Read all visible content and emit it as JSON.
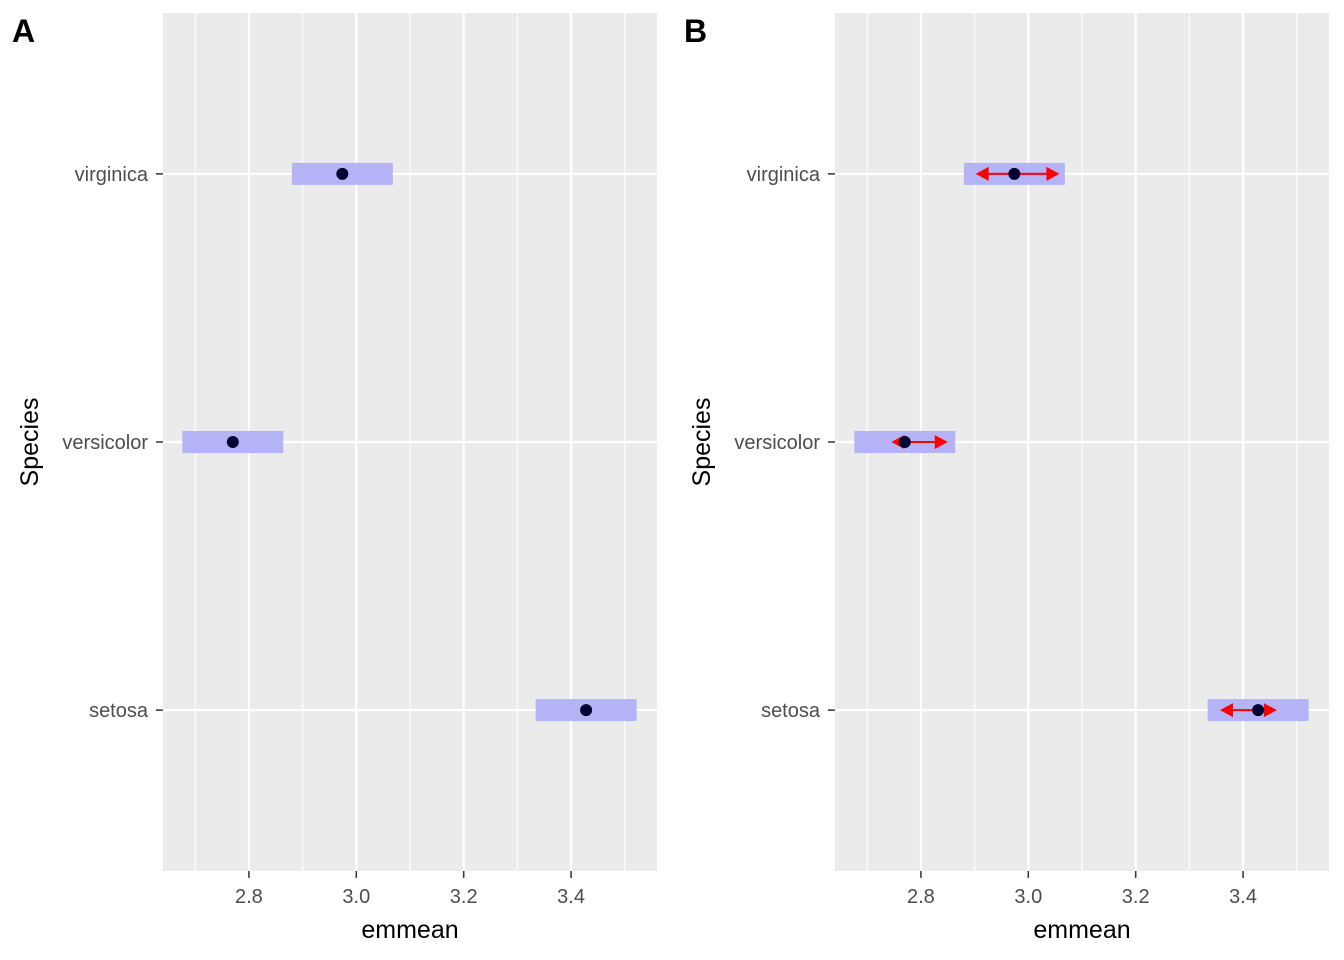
{
  "chart_data": [
    {
      "type": "scatter",
      "panel_label": "A",
      "title": "",
      "xlabel": "emmean",
      "ylabel": "Species",
      "xlim": [
        2.64,
        3.56
      ],
      "x_ticks": [
        2.8,
        3.0,
        3.2,
        3.4
      ],
      "x_tick_labels": [
        "2.8",
        "3.0",
        "3.2",
        "3.4"
      ],
      "categories": [
        "setosa",
        "versicolor",
        "virginica"
      ],
      "grid": true,
      "legend": "none",
      "points": [
        {
          "category": "setosa",
          "emmean": 3.428,
          "lower_CL": 3.334,
          "upper_CL": 3.522
        },
        {
          "category": "versicolor",
          "emmean": 2.77,
          "lower_CL": 2.676,
          "upper_CL": 2.864
        },
        {
          "category": "virginica",
          "emmean": 2.974,
          "lower_CL": 2.88,
          "upper_CL": 3.068
        }
      ],
      "show_comparison_arrows": false
    },
    {
      "type": "scatter",
      "panel_label": "B",
      "title": "",
      "xlabel": "emmean",
      "ylabel": "Species",
      "xlim": [
        2.64,
        3.56
      ],
      "x_ticks": [
        2.8,
        3.0,
        3.2,
        3.4
      ],
      "x_tick_labels": [
        "2.8",
        "3.0",
        "3.2",
        "3.4"
      ],
      "categories": [
        "setosa",
        "versicolor",
        "virginica"
      ],
      "grid": true,
      "legend": "none",
      "points": [
        {
          "category": "setosa",
          "emmean": 3.428,
          "lower_CL": 3.334,
          "upper_CL": 3.522,
          "arrow_lower": 3.357,
          "arrow_upper": 3.463
        },
        {
          "category": "versicolor",
          "emmean": 2.77,
          "lower_CL": 2.676,
          "upper_CL": 2.864,
          "arrow_lower": 2.745,
          "arrow_upper": 2.85
        },
        {
          "category": "virginica",
          "emmean": 2.974,
          "lower_CL": 2.88,
          "upper_CL": 3.068,
          "arrow_lower": 2.902,
          "arrow_upper": 3.058
        }
      ],
      "show_comparison_arrows": true
    }
  ],
  "colors": {
    "panel_background": "#ebebeb",
    "grid_major": "#ffffff",
    "ci_band": "#b3b3f5",
    "point": "#000033",
    "arrow": "#ff0000",
    "tick_label": "#4d4d4d"
  }
}
